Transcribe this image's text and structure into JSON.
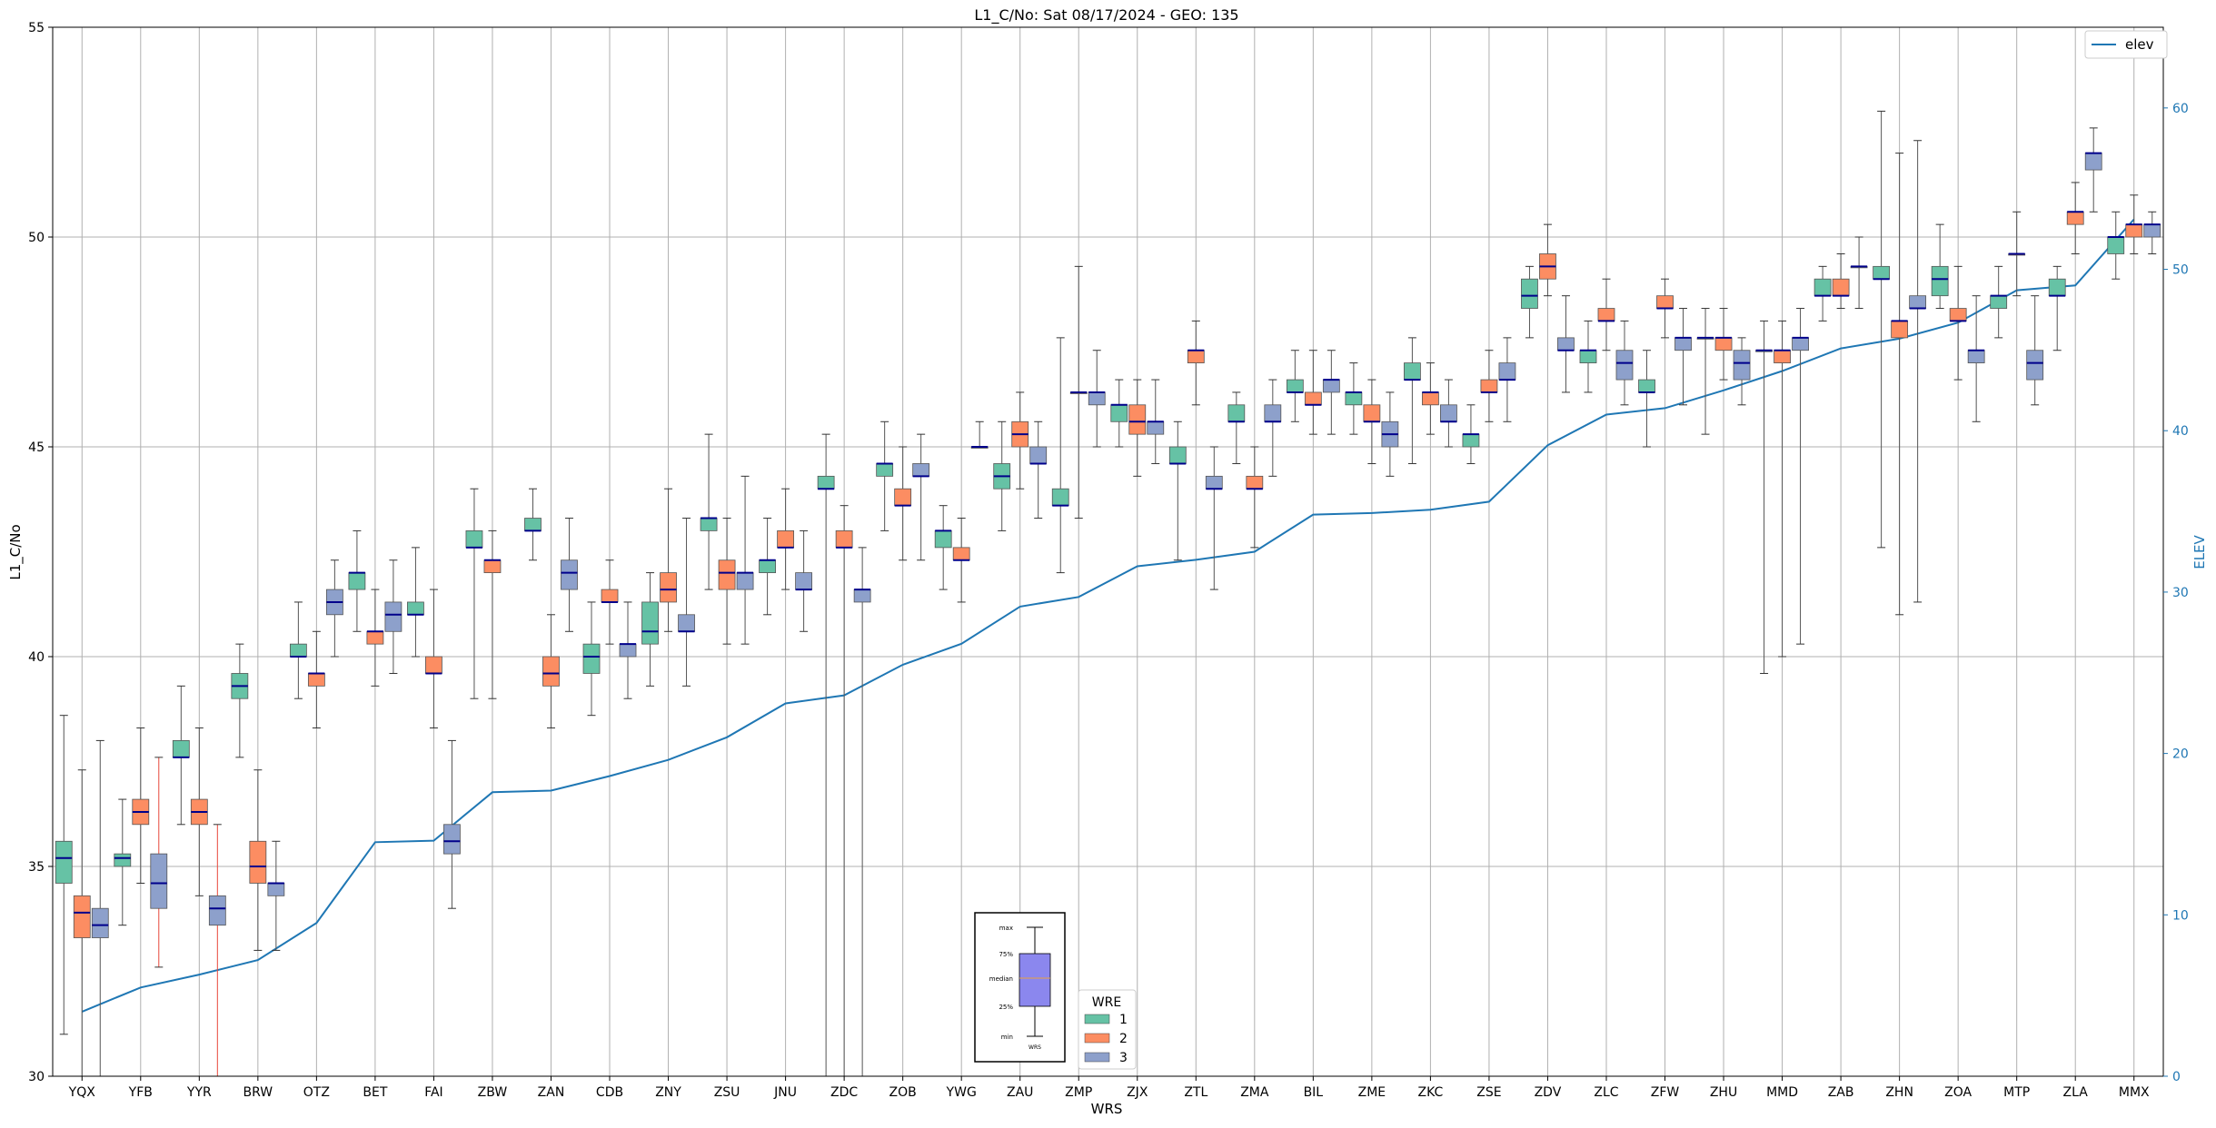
{
  "chart_data": {
    "type": "box",
    "title": "L1_C/No: Sat 08/17/2024 - GEO: 135",
    "xlabel": "WRS",
    "ylabel": "L1_C/No",
    "y2label": "ELEV",
    "ylim": [
      30,
      55
    ],
    "y2lim": [
      0,
      65
    ],
    "yticks": [
      30,
      35,
      40,
      45,
      50,
      55
    ],
    "y2ticks": [
      0,
      10,
      20,
      30,
      40,
      50,
      60
    ],
    "grid": true,
    "colors": {
      "wre1": "#66c2a5",
      "wre2": "#fc8d62",
      "wre3": "#8da0cb",
      "median": "#00008b",
      "whisker": "#555555",
      "whisker_highlight": "#e8473a",
      "elev_line": "#1f77b4",
      "y2_axis_text": "#1f77b4"
    },
    "categories": [
      "YQX",
      "YFB",
      "YYR",
      "BRW",
      "OTZ",
      "BET",
      "FAI",
      "ZBW",
      "ZAN",
      "CDB",
      "ZNY",
      "ZSU",
      "JNU",
      "ZDC",
      "ZOB",
      "YWG",
      "ZAU",
      "ZMP",
      "ZJX",
      "ZTL",
      "ZMA",
      "BIL",
      "ZME",
      "ZKC",
      "ZSE",
      "ZDV",
      "ZLC",
      "ZFW",
      "ZHU",
      "MMD",
      "ZAB",
      "ZHN",
      "ZOA",
      "MTP",
      "ZLA",
      "MMX"
    ],
    "elev": {
      "name": "elev",
      "values": [
        4.0,
        5.5,
        6.3,
        7.2,
        9.5,
        14.5,
        14.6,
        17.6,
        17.7,
        18.6,
        19.6,
        21.0,
        23.1,
        23.6,
        25.5,
        26.8,
        29.1,
        29.7,
        31.6,
        32.0,
        32.5,
        34.8,
        34.9,
        35.1,
        35.6,
        39.1,
        41.0,
        41.4,
        42.5,
        43.7,
        45.1,
        45.7,
        46.7,
        48.7,
        49.0,
        53.1
      ]
    },
    "legend": {
      "title": "WRE",
      "entries": [
        "1",
        "2",
        "3"
      ],
      "position": "bottom-center"
    },
    "legend_elev": {
      "entries": [
        "elev"
      ],
      "position": "top-right"
    },
    "key": {
      "labels": [
        "max",
        "75%",
        "median",
        "25%",
        "min"
      ],
      "caption": "WRS"
    },
    "boxes": [
      {
        "wrs": "YQX",
        "wre": 1,
        "min": 31.0,
        "q1": 34.6,
        "median": 35.2,
        "q3": 35.6,
        "max": 38.6
      },
      {
        "wrs": "YQX",
        "wre": 2,
        "min": 30.0,
        "q1": 33.3,
        "median": 33.9,
        "q3": 34.3,
        "max": 37.3
      },
      {
        "wrs": "YQX",
        "wre": 3,
        "min": 30.0,
        "q1": 33.3,
        "median": 33.6,
        "q3": 34.0,
        "max": 38.0
      },
      {
        "wrs": "YFB",
        "wre": 1,
        "min": 33.6,
        "q1": 35.0,
        "median": 35.2,
        "q3": 35.3,
        "max": 36.6
      },
      {
        "wrs": "YFB",
        "wre": 2,
        "min": 34.6,
        "q1": 36.0,
        "median": 36.3,
        "q3": 36.6,
        "max": 38.3
      },
      {
        "wrs": "YFB",
        "wre": 3,
        "min": 32.6,
        "q1": 34.0,
        "median": 34.6,
        "q3": 35.3,
        "max": 37.6,
        "highlight": true
      },
      {
        "wrs": "YYR",
        "wre": 1,
        "min": 36.0,
        "q1": 37.6,
        "median": 37.6,
        "q3": 38.0,
        "max": 39.3
      },
      {
        "wrs": "YYR",
        "wre": 2,
        "min": 34.3,
        "q1": 36.0,
        "median": 36.3,
        "q3": 36.6,
        "max": 38.3
      },
      {
        "wrs": "YYR",
        "wre": 3,
        "min": 30.0,
        "q1": 33.6,
        "median": 34.0,
        "q3": 34.3,
        "max": 36.0,
        "highlight": true
      },
      {
        "wrs": "BRW",
        "wre": 1,
        "min": 37.6,
        "q1": 39.0,
        "median": 39.3,
        "q3": 39.6,
        "max": 40.3
      },
      {
        "wrs": "BRW",
        "wre": 2,
        "min": 33.0,
        "q1": 34.6,
        "median": 35.0,
        "q3": 35.6,
        "max": 37.3
      },
      {
        "wrs": "BRW",
        "wre": 3,
        "min": 33.0,
        "q1": 34.3,
        "median": 34.6,
        "q3": 34.6,
        "max": 35.6
      },
      {
        "wrs": "OTZ",
        "wre": 1,
        "min": 39.0,
        "q1": 40.0,
        "median": 40.0,
        "q3": 40.3,
        "max": 41.3
      },
      {
        "wrs": "OTZ",
        "wre": 2,
        "min": 38.3,
        "q1": 39.3,
        "median": 39.6,
        "q3": 39.6,
        "max": 40.6
      },
      {
        "wrs": "OTZ",
        "wre": 3,
        "min": 40.0,
        "q1": 41.0,
        "median": 41.3,
        "q3": 41.6,
        "max": 42.3
      },
      {
        "wrs": "BET",
        "wre": 1,
        "min": 40.6,
        "q1": 41.6,
        "median": 42.0,
        "q3": 42.0,
        "max": 43.0
      },
      {
        "wrs": "BET",
        "wre": 2,
        "min": 39.3,
        "q1": 40.3,
        "median": 40.6,
        "q3": 40.6,
        "max": 41.6
      },
      {
        "wrs": "BET",
        "wre": 3,
        "min": 39.6,
        "q1": 40.6,
        "median": 41.0,
        "q3": 41.3,
        "max": 42.3
      },
      {
        "wrs": "FAI",
        "wre": 1,
        "min": 40.0,
        "q1": 41.0,
        "median": 41.0,
        "q3": 41.3,
        "max": 42.6
      },
      {
        "wrs": "FAI",
        "wre": 2,
        "min": 38.3,
        "q1": 39.6,
        "median": 39.6,
        "q3": 40.0,
        "max": 41.6
      },
      {
        "wrs": "FAI",
        "wre": 3,
        "min": 34.0,
        "q1": 35.3,
        "median": 35.6,
        "q3": 36.0,
        "max": 38.0
      },
      {
        "wrs": "ZBW",
        "wre": 1,
        "min": 39.0,
        "q1": 42.6,
        "median": 42.6,
        "q3": 43.0,
        "max": 44.0
      },
      {
        "wrs": "ZBW",
        "wre": 2,
        "min": 39.0,
        "q1": 42.0,
        "median": 42.3,
        "q3": 42.3,
        "max": 43.0
      },
      {
        "wrs": "ZAN",
        "wre": 1,
        "min": 42.3,
        "q1": 43.0,
        "median": 43.0,
        "q3": 43.3,
        "max": 44.0
      },
      {
        "wrs": "ZAN",
        "wre": 2,
        "min": 38.3,
        "q1": 39.3,
        "median": 39.6,
        "q3": 40.0,
        "max": 41.0
      },
      {
        "wrs": "ZAN",
        "wre": 3,
        "min": 40.6,
        "q1": 41.6,
        "median": 42.0,
        "q3": 42.3,
        "max": 43.3
      },
      {
        "wrs": "CDB",
        "wre": 1,
        "min": 38.6,
        "q1": 39.6,
        "median": 40.0,
        "q3": 40.3,
        "max": 41.3
      },
      {
        "wrs": "CDB",
        "wre": 2,
        "min": 40.3,
        "q1": 41.3,
        "median": 41.3,
        "q3": 41.6,
        "max": 42.3
      },
      {
        "wrs": "CDB",
        "wre": 3,
        "min": 39.0,
        "q1": 40.0,
        "median": 40.3,
        "q3": 40.3,
        "max": 41.3
      },
      {
        "wrs": "ZNY",
        "wre": 1,
        "min": 39.3,
        "q1": 40.3,
        "median": 40.6,
        "q3": 41.3,
        "max": 42.0
      },
      {
        "wrs": "ZNY",
        "wre": 2,
        "min": 40.6,
        "q1": 41.3,
        "median": 41.6,
        "q3": 42.0,
        "max": 44.0
      },
      {
        "wrs": "ZNY",
        "wre": 3,
        "min": 39.3,
        "q1": 40.6,
        "median": 40.6,
        "q3": 41.0,
        "max": 43.3
      },
      {
        "wrs": "ZSU",
        "wre": 1,
        "min": 41.6,
        "q1": 43.0,
        "median": 43.3,
        "q3": 43.3,
        "max": 45.3
      },
      {
        "wrs": "ZSU",
        "wre": 2,
        "min": 40.3,
        "q1": 41.6,
        "median": 42.0,
        "q3": 42.3,
        "max": 43.3
      },
      {
        "wrs": "ZSU",
        "wre": 3,
        "min": 40.3,
        "q1": 41.6,
        "median": 42.0,
        "q3": 42.0,
        "max": 44.3
      },
      {
        "wrs": "JNU",
        "wre": 1,
        "min": 41.0,
        "q1": 42.0,
        "median": 42.3,
        "q3": 42.3,
        "max": 43.3
      },
      {
        "wrs": "JNU",
        "wre": 2,
        "min": 41.6,
        "q1": 42.6,
        "median": 42.6,
        "q3": 43.0,
        "max": 44.0
      },
      {
        "wrs": "JNU",
        "wre": 3,
        "min": 40.6,
        "q1": 41.6,
        "median": 41.6,
        "q3": 42.0,
        "max": 43.0
      },
      {
        "wrs": "ZDC",
        "wre": 1,
        "min": 30.0,
        "q1": 44.0,
        "median": 44.0,
        "q3": 44.3,
        "max": 45.3
      },
      {
        "wrs": "ZDC",
        "wre": 2,
        "min": 30.0,
        "q1": 42.6,
        "median": 42.6,
        "q3": 43.0,
        "max": 43.6
      },
      {
        "wrs": "ZDC",
        "wre": 3,
        "min": 30.0,
        "q1": 41.3,
        "median": 41.6,
        "q3": 41.6,
        "max": 42.6
      },
      {
        "wrs": "ZOB",
        "wre": 1,
        "min": 43.0,
        "q1": 44.3,
        "median": 44.6,
        "q3": 44.6,
        "max": 45.6
      },
      {
        "wrs": "ZOB",
        "wre": 2,
        "min": 42.3,
        "q1": 43.6,
        "median": 43.6,
        "q3": 44.0,
        "max": 45.0
      },
      {
        "wrs": "ZOB",
        "wre": 3,
        "min": 42.3,
        "q1": 44.3,
        "median": 44.3,
        "q3": 44.6,
        "max": 45.3
      },
      {
        "wrs": "YWG",
        "wre": 1,
        "min": 41.6,
        "q1": 42.6,
        "median": 43.0,
        "q3": 43.0,
        "max": 43.6
      },
      {
        "wrs": "YWG",
        "wre": 2,
        "min": 41.3,
        "q1": 42.3,
        "median": 42.3,
        "q3": 42.6,
        "max": 43.3
      },
      {
        "wrs": "YWG",
        "wre": 3,
        "min": 45.0,
        "q1": 45.0,
        "median": 45.0,
        "q3": 45.0,
        "max": 45.6
      },
      {
        "wrs": "ZAU",
        "wre": 1,
        "min": 43.0,
        "q1": 44.0,
        "median": 44.3,
        "q3": 44.6,
        "max": 45.6
      },
      {
        "wrs": "ZAU",
        "wre": 2,
        "min": 44.0,
        "q1": 45.0,
        "median": 45.3,
        "q3": 45.6,
        "max": 46.3
      },
      {
        "wrs": "ZAU",
        "wre": 3,
        "min": 43.3,
        "q1": 44.6,
        "median": 44.6,
        "q3": 45.0,
        "max": 45.6
      },
      {
        "wrs": "ZMP",
        "wre": 1,
        "min": 42.0,
        "q1": 43.6,
        "median": 43.6,
        "q3": 44.0,
        "max": 47.6
      },
      {
        "wrs": "ZMP",
        "wre": 2,
        "min": 43.3,
        "q1": 46.3,
        "median": 46.3,
        "q3": 46.3,
        "max": 49.3
      },
      {
        "wrs": "ZMP",
        "wre": 3,
        "min": 45.0,
        "q1": 46.0,
        "median": 46.3,
        "q3": 46.3,
        "max": 47.3
      },
      {
        "wrs": "ZJX",
        "wre": 1,
        "min": 45.0,
        "q1": 45.6,
        "median": 46.0,
        "q3": 46.0,
        "max": 46.6
      },
      {
        "wrs": "ZJX",
        "wre": 2,
        "min": 44.3,
        "q1": 45.3,
        "median": 45.6,
        "q3": 46.0,
        "max": 46.6
      },
      {
        "wrs": "ZJX",
        "wre": 3,
        "min": 44.6,
        "q1": 45.3,
        "median": 45.6,
        "q3": 45.6,
        "max": 46.6
      },
      {
        "wrs": "ZTL",
        "wre": 1,
        "min": 42.3,
        "q1": 44.6,
        "median": 44.6,
        "q3": 45.0,
        "max": 45.6
      },
      {
        "wrs": "ZTL",
        "wre": 2,
        "min": 46.0,
        "q1": 47.0,
        "median": 47.3,
        "q3": 47.3,
        "max": 48.0
      },
      {
        "wrs": "ZTL",
        "wre": 3,
        "min": 41.6,
        "q1": 44.0,
        "median": 44.0,
        "q3": 44.3,
        "max": 45.0
      },
      {
        "wrs": "ZMA",
        "wre": 1,
        "min": 44.6,
        "q1": 45.6,
        "median": 45.6,
        "q3": 46.0,
        "max": 46.3
      },
      {
        "wrs": "ZMA",
        "wre": 2,
        "min": 42.6,
        "q1": 44.0,
        "median": 44.0,
        "q3": 44.3,
        "max": 45.0
      },
      {
        "wrs": "ZMA",
        "wre": 3,
        "min": 44.3,
        "q1": 45.6,
        "median": 45.6,
        "q3": 46.0,
        "max": 46.6
      },
      {
        "wrs": "BIL",
        "wre": 1,
        "min": 45.6,
        "q1": 46.3,
        "median": 46.3,
        "q3": 46.6,
        "max": 47.3
      },
      {
        "wrs": "BIL",
        "wre": 2,
        "min": 45.3,
        "q1": 46.0,
        "median": 46.0,
        "q3": 46.3,
        "max": 47.3
      },
      {
        "wrs": "BIL",
        "wre": 3,
        "min": 45.3,
        "q1": 46.3,
        "median": 46.6,
        "q3": 46.6,
        "max": 47.3
      },
      {
        "wrs": "ZME",
        "wre": 1,
        "min": 45.3,
        "q1": 46.0,
        "median": 46.3,
        "q3": 46.3,
        "max": 47.0
      },
      {
        "wrs": "ZME",
        "wre": 2,
        "min": 44.6,
        "q1": 45.6,
        "median": 45.6,
        "q3": 46.0,
        "max": 46.6
      },
      {
        "wrs": "ZME",
        "wre": 3,
        "min": 44.3,
        "q1": 45.0,
        "median": 45.3,
        "q3": 45.6,
        "max": 46.3
      },
      {
        "wrs": "ZKC",
        "wre": 1,
        "min": 44.6,
        "q1": 46.6,
        "median": 46.6,
        "q3": 47.0,
        "max": 47.6
      },
      {
        "wrs": "ZKC",
        "wre": 2,
        "min": 45.3,
        "q1": 46.0,
        "median": 46.3,
        "q3": 46.3,
        "max": 47.0
      },
      {
        "wrs": "ZKC",
        "wre": 3,
        "min": 45.0,
        "q1": 45.6,
        "median": 45.6,
        "q3": 46.0,
        "max": 46.6
      },
      {
        "wrs": "ZSE",
        "wre": 1,
        "min": 44.6,
        "q1": 45.0,
        "median": 45.3,
        "q3": 45.3,
        "max": 46.0
      },
      {
        "wrs": "ZSE",
        "wre": 2,
        "min": 45.6,
        "q1": 46.3,
        "median": 46.3,
        "q3": 46.6,
        "max": 47.3
      },
      {
        "wrs": "ZSE",
        "wre": 3,
        "min": 45.6,
        "q1": 46.6,
        "median": 46.6,
        "q3": 47.0,
        "max": 47.6
      },
      {
        "wrs": "ZDV",
        "wre": 1,
        "min": 47.6,
        "q1": 48.3,
        "median": 48.6,
        "q3": 49.0,
        "max": 49.3
      },
      {
        "wrs": "ZDV",
        "wre": 2,
        "min": 48.6,
        "q1": 49.0,
        "median": 49.3,
        "q3": 49.6,
        "max": 50.3
      },
      {
        "wrs": "ZDV",
        "wre": 3,
        "min": 46.3,
        "q1": 47.3,
        "median": 47.3,
        "q3": 47.6,
        "max": 48.6
      },
      {
        "wrs": "ZLC",
        "wre": 1,
        "min": 46.3,
        "q1": 47.0,
        "median": 47.3,
        "q3": 47.3,
        "max": 48.0
      },
      {
        "wrs": "ZLC",
        "wre": 2,
        "min": 47.3,
        "q1": 48.0,
        "median": 48.0,
        "q3": 48.3,
        "max": 49.0
      },
      {
        "wrs": "ZLC",
        "wre": 3,
        "min": 46.0,
        "q1": 46.6,
        "median": 47.0,
        "q3": 47.3,
        "max": 48.0
      },
      {
        "wrs": "ZFW",
        "wre": 1,
        "min": 45.0,
        "q1": 46.3,
        "median": 46.3,
        "q3": 46.6,
        "max": 47.3
      },
      {
        "wrs": "ZFW",
        "wre": 2,
        "min": 47.6,
        "q1": 48.3,
        "median": 48.3,
        "q3": 48.6,
        "max": 49.0
      },
      {
        "wrs": "ZFW",
        "wre": 3,
        "min": 46.0,
        "q1": 47.3,
        "median": 47.6,
        "q3": 47.6,
        "max": 48.3
      },
      {
        "wrs": "ZHU",
        "wre": 1,
        "min": 45.3,
        "q1": 47.6,
        "median": 47.6,
        "q3": 47.6,
        "max": 48.3
      },
      {
        "wrs": "ZHU",
        "wre": 2,
        "min": 46.6,
        "q1": 47.3,
        "median": 47.6,
        "q3": 47.6,
        "max": 48.3
      },
      {
        "wrs": "ZHU",
        "wre": 3,
        "min": 46.0,
        "q1": 46.6,
        "median": 47.0,
        "q3": 47.3,
        "max": 47.6
      },
      {
        "wrs": "MMD",
        "wre": 1,
        "min": 39.6,
        "q1": 47.3,
        "median": 47.3,
        "q3": 47.3,
        "max": 48.0
      },
      {
        "wrs": "MMD",
        "wre": 2,
        "min": 40.0,
        "q1": 47.0,
        "median": 47.3,
        "q3": 47.3,
        "max": 48.0
      },
      {
        "wrs": "MMD",
        "wre": 3,
        "min": 40.3,
        "q1": 47.3,
        "median": 47.6,
        "q3": 47.6,
        "max": 48.3
      },
      {
        "wrs": "ZAB",
        "wre": 1,
        "min": 48.0,
        "q1": 48.6,
        "median": 48.6,
        "q3": 49.0,
        "max": 49.3
      },
      {
        "wrs": "ZAB",
        "wre": 2,
        "min": 48.3,
        "q1": 48.6,
        "median": 48.6,
        "q3": 49.0,
        "max": 49.6
      },
      {
        "wrs": "ZAB",
        "wre": 3,
        "min": 48.3,
        "q1": 49.3,
        "median": 49.3,
        "q3": 49.3,
        "max": 50.0
      },
      {
        "wrs": "ZHN",
        "wre": 1,
        "min": 42.6,
        "q1": 49.0,
        "median": 49.0,
        "q3": 49.3,
        "max": 53.0
      },
      {
        "wrs": "ZHN",
        "wre": 2,
        "min": 41.0,
        "q1": 47.6,
        "median": 48.0,
        "q3": 48.0,
        "max": 52.0
      },
      {
        "wrs": "ZHN",
        "wre": 3,
        "min": 41.3,
        "q1": 48.3,
        "median": 48.3,
        "q3": 48.6,
        "max": 52.3
      },
      {
        "wrs": "ZOA",
        "wre": 1,
        "min": 48.3,
        "q1": 48.6,
        "median": 49.0,
        "q3": 49.3,
        "max": 50.3
      },
      {
        "wrs": "ZOA",
        "wre": 2,
        "min": 46.6,
        "q1": 48.0,
        "median": 48.0,
        "q3": 48.3,
        "max": 49.3
      },
      {
        "wrs": "ZOA",
        "wre": 3,
        "min": 45.6,
        "q1": 47.0,
        "median": 47.3,
        "q3": 47.3,
        "max": 48.6
      },
      {
        "wrs": "MTP",
        "wre": 1,
        "min": 47.6,
        "q1": 48.3,
        "median": 48.6,
        "q3": 48.6,
        "max": 49.3
      },
      {
        "wrs": "MTP",
        "wre": 2,
        "min": 48.6,
        "q1": 49.6,
        "median": 49.6,
        "q3": 49.6,
        "max": 50.6
      },
      {
        "wrs": "MTP",
        "wre": 3,
        "min": 46.0,
        "q1": 46.6,
        "median": 47.0,
        "q3": 47.3,
        "max": 48.6
      },
      {
        "wrs": "ZLA",
        "wre": 1,
        "min": 47.3,
        "q1": 48.6,
        "median": 48.6,
        "q3": 49.0,
        "max": 49.3
      },
      {
        "wrs": "ZLA",
        "wre": 2,
        "min": 49.6,
        "q1": 50.3,
        "median": 50.6,
        "q3": 50.6,
        "max": 51.3
      },
      {
        "wrs": "ZLA",
        "wre": 3,
        "min": 50.6,
        "q1": 51.6,
        "median": 52.0,
        "q3": 52.0,
        "max": 52.6
      },
      {
        "wrs": "MMX",
        "wre": 1,
        "min": 49.0,
        "q1": 49.6,
        "median": 50.0,
        "q3": 50.0,
        "max": 50.6
      },
      {
        "wrs": "MMX",
        "wre": 2,
        "min": 49.6,
        "q1": 50.0,
        "median": 50.3,
        "q3": 50.3,
        "max": 51.0
      },
      {
        "wrs": "MMX",
        "wre": 3,
        "min": 49.6,
        "q1": 50.0,
        "median": 50.3,
        "q3": 50.3,
        "max": 50.6
      }
    ]
  }
}
